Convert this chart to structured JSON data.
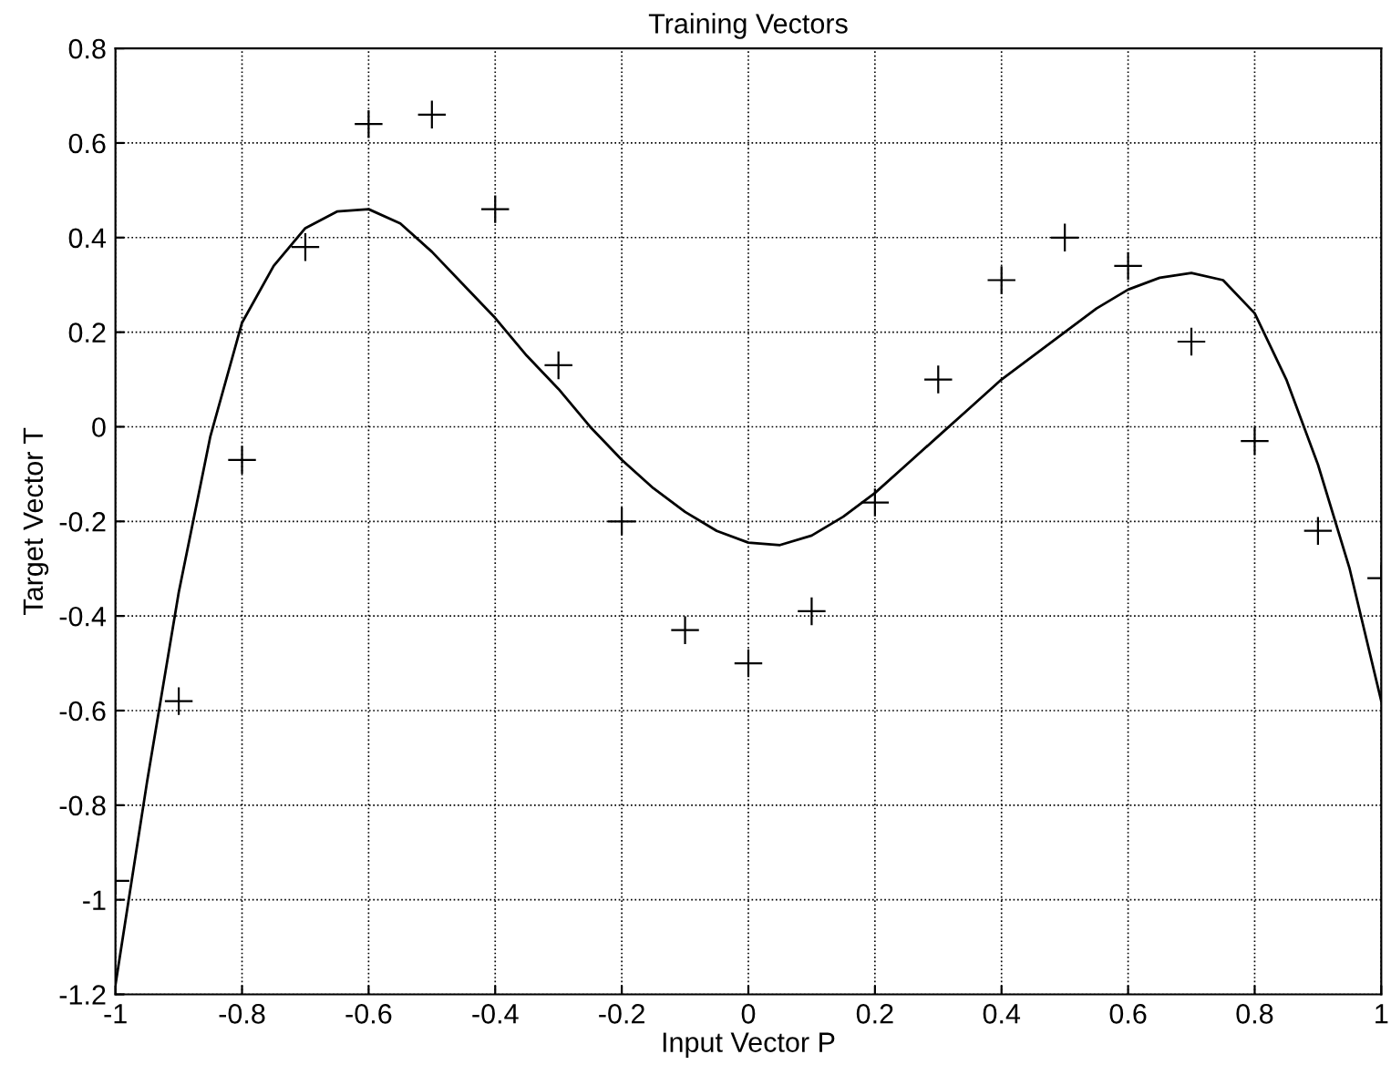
{
  "chart_data": {
    "type": "scatter",
    "title": "Training Vectors",
    "xlabel": "Input Vector P",
    "ylabel": "Target Vector T",
    "xlim": [
      -1,
      1
    ],
    "xticks": [
      -1,
      -0.8,
      -0.6,
      -0.4,
      -0.2,
      0,
      0.2,
      0.4,
      0.6,
      0.8,
      1
    ],
    "ylim": [
      -1.2,
      0.8
    ],
    "yticks": [
      -1.2,
      -1,
      -0.8,
      -0.6,
      -0.4,
      -0.2,
      0,
      0.2,
      0.4,
      0.6,
      0.8
    ],
    "grid": true,
    "series": [
      {
        "color": "#000000",
        "marker": "cross",
        "x": [
          -1,
          -0.9,
          -0.8,
          -0.7,
          -0.6,
          -0.5,
          -0.4,
          -0.3,
          -0.2,
          -0.1,
          0,
          0.1,
          0.2,
          0.3,
          0.4,
          0.5,
          0.6,
          0.7,
          0.8,
          0.9,
          1
        ],
        "values": [
          -0.96,
          -0.58,
          -0.07,
          0.38,
          0.64,
          0.66,
          0.46,
          0.13,
          -0.2,
          -0.43,
          -0.5,
          -0.39,
          -0.16,
          0.1,
          0.31,
          0.4,
          0.34,
          0.18,
          -0.03,
          -0.22,
          -0.32
        ]
      },
      {
        "type": "line",
        "color": "#000000",
        "marker": "none",
        "line_style": "solid",
        "x": [
          -1,
          -0.95,
          -0.9,
          -0.85,
          -0.8,
          -0.75,
          -0.7,
          -0.65,
          -0.6,
          -0.55,
          -0.5,
          -0.45,
          -0.4,
          -0.35,
          -0.3,
          -0.25,
          -0.2,
          -0.15,
          -0.1,
          -0.05,
          0,
          0.05,
          0.1,
          0.15,
          0.2,
          0.25,
          0.3,
          0.35,
          0.4,
          0.45,
          0.5,
          0.55,
          0.6,
          0.65,
          0.7,
          0.75,
          0.8,
          0.85,
          0.9,
          0.95,
          1
        ],
        "values": [
          -1.18,
          -0.75,
          -0.35,
          -0.02,
          0.22,
          0.34,
          0.42,
          0.455,
          0.46,
          0.43,
          0.37,
          0.3,
          0.23,
          0.15,
          0.08,
          0.0,
          -0.07,
          -0.13,
          -0.18,
          -0.22,
          -0.245,
          -0.25,
          -0.23,
          -0.19,
          -0.14,
          -0.08,
          -0.02,
          0.04,
          0.1,
          0.15,
          0.2,
          0.25,
          0.29,
          0.315,
          0.325,
          0.31,
          0.24,
          0.1,
          -0.08,
          -0.3,
          -0.58
        ]
      }
    ]
  }
}
